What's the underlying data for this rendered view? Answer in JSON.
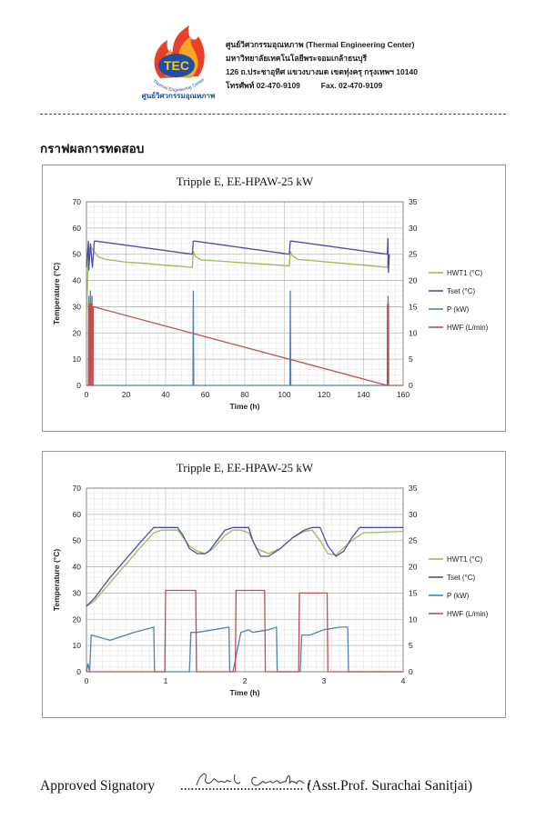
{
  "header": {
    "center_name": "ศูนย์วิศวกรรมอุณหภาพ (Thermal Engineering Center)",
    "university": "มหาวิทยาลัยเทคโนโลยีพระจอมเกล้าธนบุรี",
    "address": "126 ถ.ประชาอุทิศ  แขวงบางมด  เขตทุ่งครุ  กรุงเทพฯ 10140",
    "phone": "โทรศัพท์  02-470-9109",
    "fax": "Fax.  02-470-9109",
    "logo_text": "TEC",
    "logo_sub_en": "Thermal Engineering Center",
    "logo_sub_th": "ศูนย์วิศวกรรมอุณหภาพ"
  },
  "section_title": "กราฟผลการทดสอบ",
  "chart_data": [
    {
      "type": "line",
      "title": "Tripple E, EE-HPAW-25 kW",
      "xlabel": "Time (h)",
      "ylabel": "Temperature (°C)",
      "xlim": [
        0,
        160
      ],
      "ylim": [
        0,
        70
      ],
      "y2lim": [
        0,
        35
      ],
      "xticks": [
        0,
        20,
        40,
        60,
        80,
        100,
        120,
        140,
        160
      ],
      "yticks": [
        0,
        10,
        20,
        30,
        40,
        50,
        60,
        70
      ],
      "y2ticks": [
        0,
        5,
        10,
        15,
        20,
        25,
        30,
        35
      ],
      "grid": true,
      "legend": "right",
      "series": [
        {
          "name": "HWT1 (°C)",
          "axis": "left",
          "color": "#9bbb59",
          "x": [
            0,
            1,
            2,
            3,
            4,
            6,
            10,
            20,
            30,
            40,
            53.5,
            54,
            55,
            58,
            65,
            80,
            95,
            102.5,
            103,
            104,
            107,
            115,
            130,
            145,
            152,
            152.5,
            153
          ],
          "y": [
            26,
            51,
            53,
            52,
            51,
            49,
            48,
            47,
            46.5,
            45.8,
            45,
            51,
            49.2,
            47.8,
            47.5,
            46.7,
            46,
            45.5,
            51,
            49.5,
            48,
            47.5,
            46.5,
            45.5,
            45,
            50,
            46
          ]
        },
        {
          "name": "Tset (°C)",
          "axis": "left",
          "color": "#4f4fa0",
          "x": [
            0,
            1,
            1.2,
            2,
            3,
            4,
            5,
            53.5,
            54,
            55,
            102.5,
            103,
            104,
            152,
            152.3,
            152.6,
            153
          ],
          "y": [
            45,
            55,
            44,
            54,
            45,
            55,
            55,
            50,
            55,
            55,
            50,
            55,
            55,
            50,
            56,
            43,
            50
          ]
        },
        {
          "name": "P (kW)",
          "axis": "right",
          "color": "#4f81bd",
          "x": [
            0,
            1,
            1.2,
            1.8,
            2,
            2.2,
            2.8,
            3,
            53.8,
            54,
            54.2,
            102.8,
            103,
            103.2,
            152.2,
            152.4,
            152.6
          ],
          "y": [
            0,
            0,
            17,
            0,
            18,
            0,
            17,
            0,
            0,
            18,
            0,
            0,
            18,
            0,
            0,
            17,
            0
          ]
        },
        {
          "name": "HWF (L/min)",
          "axis": "right",
          "color": "#c0504d",
          "x": [
            0,
            1,
            1.1,
            1.6,
            1.7,
            2.2,
            2.3,
            2.8,
            2.9,
            3.3,
            3.4,
            152,
            152.1,
            152.6,
            152.7,
            160
          ],
          "y": [
            0,
            0,
            15.5,
            15.5,
            0,
            0,
            15.5,
            15.5,
            0,
            0,
            15,
            0,
            15.5,
            15.5,
            0,
            0
          ]
        }
      ]
    },
    {
      "type": "line",
      "title": "Tripple E, EE-HPAW-25 kW",
      "xlabel": "Time (h)",
      "ylabel": "Temperature (°C)",
      "xlim": [
        0,
        4
      ],
      "ylim": [
        0,
        70
      ],
      "y2lim": [
        0,
        35
      ],
      "xticks": [
        0,
        1,
        2,
        3,
        4
      ],
      "yticks": [
        0,
        10,
        20,
        30,
        40,
        50,
        60,
        70
      ],
      "y2ticks": [
        0,
        5,
        10,
        15,
        20,
        25,
        30,
        35
      ],
      "grid": true,
      "legend": "right",
      "series": [
        {
          "name": "HWT1 (°C)",
          "axis": "left",
          "color": "#9bbb59",
          "x": [
            0,
            0.1,
            0.3,
            0.5,
            0.7,
            0.85,
            0.95,
            1.05,
            1.15,
            1.3,
            1.4,
            1.5,
            1.6,
            1.75,
            1.85,
            1.95,
            2.05,
            2.15,
            2.3,
            2.45,
            2.6,
            2.75,
            2.85,
            2.95,
            3.05,
            3.15,
            3.35,
            3.5,
            4
          ],
          "y": [
            25,
            27,
            34,
            41,
            48,
            53,
            54,
            54,
            54,
            48,
            46,
            45,
            47,
            52,
            54,
            54,
            53,
            47,
            45,
            47,
            51,
            53.5,
            54,
            50,
            45,
            44.5,
            50,
            53,
            53.5
          ]
        },
        {
          "name": "Tset (°C)",
          "axis": "left",
          "color": "#4f4fa0",
          "x": [
            0,
            0.1,
            0.3,
            0.5,
            0.7,
            0.85,
            1.15,
            1.22,
            1.3,
            1.4,
            1.5,
            1.55,
            1.65,
            1.75,
            1.85,
            2.05,
            2.1,
            2.2,
            2.3,
            2.45,
            2.6,
            2.75,
            2.85,
            2.95,
            3.05,
            3.15,
            3.25,
            3.35,
            3.45,
            4
          ],
          "y": [
            25,
            28,
            36,
            43,
            50,
            55,
            55,
            52,
            47,
            45,
            45,
            46,
            50,
            54,
            55,
            55,
            50,
            44,
            44,
            47,
            51,
            54,
            55,
            55,
            48,
            44,
            46,
            51,
            55,
            55
          ]
        },
        {
          "name": "P (kW)",
          "axis": "right",
          "color": "#4f81bd",
          "x": [
            0,
            0.02,
            0.04,
            0.06,
            0.3,
            0.6,
            0.85,
            0.86,
            0.9,
            1.3,
            1.32,
            1.4,
            1.6,
            1.8,
            1.81,
            1.85,
            1.95,
            2.05,
            2.1,
            2.3,
            2.4,
            2.41,
            2.7,
            2.72,
            2.82,
            3.0,
            3.2,
            3.3,
            3.31,
            3.5,
            4
          ],
          "y": [
            0,
            1.5,
            0,
            7,
            6,
            7.5,
            8.5,
            0,
            0,
            0,
            7.5,
            7.5,
            8,
            8.5,
            0,
            0,
            7.5,
            8,
            7.5,
            8,
            8.5,
            0,
            0,
            7,
            7,
            8,
            8.5,
            8.5,
            0,
            0,
            0
          ]
        },
        {
          "name": "HWF (L/min)",
          "axis": "right",
          "color": "#c0504d",
          "x": [
            0,
            0.99,
            1.0,
            1.38,
            1.39,
            1.88,
            1.89,
            2.25,
            2.26,
            2.68,
            2.69,
            3.04,
            3.05,
            4
          ],
          "y": [
            0,
            0,
            15.5,
            15.5,
            0,
            0,
            15.5,
            15.5,
            0,
            0,
            15,
            15,
            0,
            0
          ]
        }
      ]
    }
  ],
  "signature": {
    "label": "Approved Signatory",
    "dots": "...................................",
    "name": "(Asst.Prof. Surachai Sanitjai)"
  },
  "colors": {
    "HWT1": "#9bbb59",
    "Tset": "#4f4fa0",
    "P": "#4f81bd",
    "HWF": "#c0504d"
  }
}
